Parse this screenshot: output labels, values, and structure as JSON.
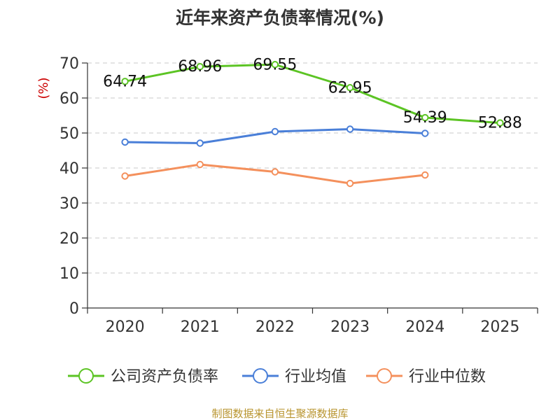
{
  "chart_data": {
    "type": "line",
    "title": "近年来资产负债率情况(%)",
    "ylabel": "(%)",
    "xlabel": "",
    "categories": [
      "2020",
      "2021",
      "2022",
      "2023",
      "2024",
      "2025"
    ],
    "ylim": [
      0,
      70
    ],
    "yticks": [
      0,
      10,
      20,
      30,
      40,
      50,
      60,
      70
    ],
    "grid": true,
    "legend_position": "bottom",
    "series": [
      {
        "name": "公司资产负债率",
        "color": "#5cc424",
        "values": [
          64.74,
          68.96,
          69.55,
          62.95,
          54.39,
          52.88
        ],
        "labels": [
          "64.74",
          "68.96",
          "69.55",
          "62.95",
          "54.39",
          "52.88"
        ]
      },
      {
        "name": "行业均值",
        "color": "#4a7fd8",
        "values": [
          47.4,
          47.1,
          50.4,
          51.1,
          49.9,
          null
        ]
      },
      {
        "name": "行业中位数",
        "color": "#f4905c",
        "values": [
          37.7,
          41.0,
          38.9,
          35.6,
          38.0,
          null
        ]
      }
    ],
    "source": "制图数据来自恒生聚源数据库"
  }
}
